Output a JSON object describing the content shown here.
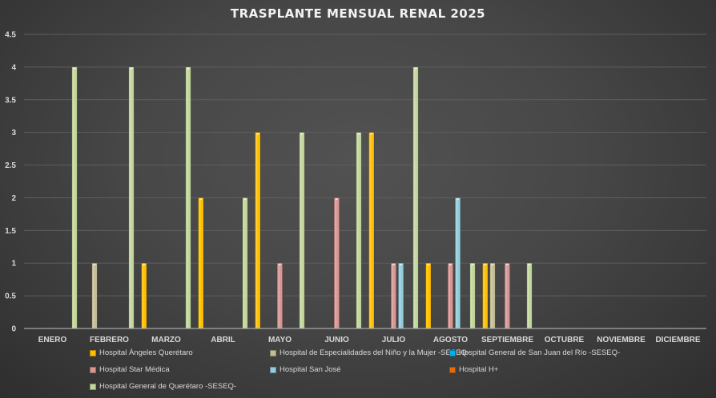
{
  "chart_data": {
    "type": "bar",
    "title": "TRASPLANTE MENSUAL RENAL 2025",
    "xlabel": "",
    "ylabel": "",
    "ylim": [
      0,
      4.5
    ],
    "yticks": [
      "0",
      "0.5",
      "1",
      "1.5",
      "2",
      "2.5",
      "3",
      "3.5",
      "4",
      "4.5"
    ],
    "grid": true,
    "legend_position": "bottom",
    "categories": [
      "ENERO",
      "FEBRERO",
      "MARZO",
      "ABRIL",
      "MAYO",
      "JUNIO",
      "JULIO",
      "AGOSTO",
      "SEPTIEMBRE",
      "OCTUBRE",
      "NOVIEMBRE",
      "DICIEMBRE"
    ],
    "series": [
      {
        "name": "Hospital Ángeles Querétaro",
        "color": "#ffc000",
        "values": [
          0,
          0,
          1,
          2,
          3,
          0,
          3,
          1,
          1,
          0,
          0,
          0
        ]
      },
      {
        "name": "Hospital de Especialidades del Niño y la Mujer -SESEQ-",
        "color": "#c4bd97",
        "values": [
          0,
          1,
          0,
          0,
          0,
          0,
          0,
          0,
          1,
          0,
          0,
          0
        ]
      },
      {
        "name": "Hospital General de San Juan del Río -SESEQ-",
        "color": "#00b0f0",
        "values": [
          0,
          0,
          0,
          0,
          0,
          0,
          0,
          0,
          0,
          0,
          0,
          0
        ]
      },
      {
        "name": "Hospital Star Médica",
        "color": "#da9694",
        "values": [
          0,
          0,
          0,
          0,
          1,
          2,
          1,
          1,
          1,
          0,
          0,
          0
        ]
      },
      {
        "name": "Hospital San José",
        "color": "#92cddc",
        "values": [
          0,
          0,
          0,
          0,
          0,
          0,
          1,
          2,
          0,
          0,
          0,
          0
        ]
      },
      {
        "name": "Hospital H+",
        "color": "#e46c0a",
        "values": [
          0,
          0,
          0,
          0,
          0,
          0,
          0,
          0,
          0,
          0,
          0,
          0
        ]
      },
      {
        "name": "Hospital General de Querétaro -SESEQ-",
        "color": "#c3d69b",
        "values": [
          4,
          4,
          4,
          2,
          3,
          3,
          4,
          1,
          1,
          0,
          0,
          0
        ]
      }
    ]
  }
}
